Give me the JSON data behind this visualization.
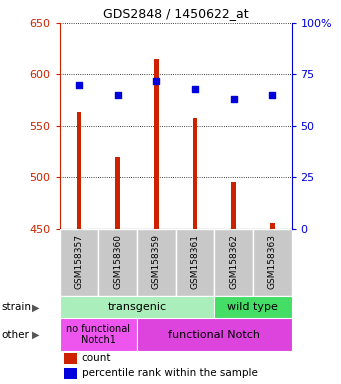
{
  "title": "GDS2848 / 1450622_at",
  "samples": [
    "GSM158357",
    "GSM158360",
    "GSM158359",
    "GSM158361",
    "GSM158362",
    "GSM158363"
  ],
  "counts": [
    563,
    520,
    615,
    558,
    495,
    455
  ],
  "percentiles": [
    70,
    65,
    72,
    68,
    63,
    65
  ],
  "ymin": 450,
  "ymax": 650,
  "yticks": [
    450,
    500,
    550,
    600,
    650
  ],
  "y2min": 0,
  "y2max": 100,
  "y2ticks": [
    0,
    25,
    50,
    75,
    100
  ],
  "y2ticklabels": [
    "0",
    "25",
    "50",
    "75",
    "100%"
  ],
  "bar_color": "#cc2200",
  "dot_color": "#0000dd",
  "bar_width": 0.12,
  "strain_labels": [
    "transgenic",
    "wild type"
  ],
  "strain_color_light": "#aaeebb",
  "strain_color_dark": "#44dd66",
  "other_labels": [
    "no functional\nNotch1",
    "functional Notch"
  ],
  "other_color": "#ee55ee",
  "other_color2": "#dd44dd",
  "legend_count_label": "count",
  "legend_pct_label": "percentile rank within the sample",
  "left_axis_color": "#cc2200",
  "right_axis_color": "#0000dd",
  "label_bg": "#c8c8c8"
}
